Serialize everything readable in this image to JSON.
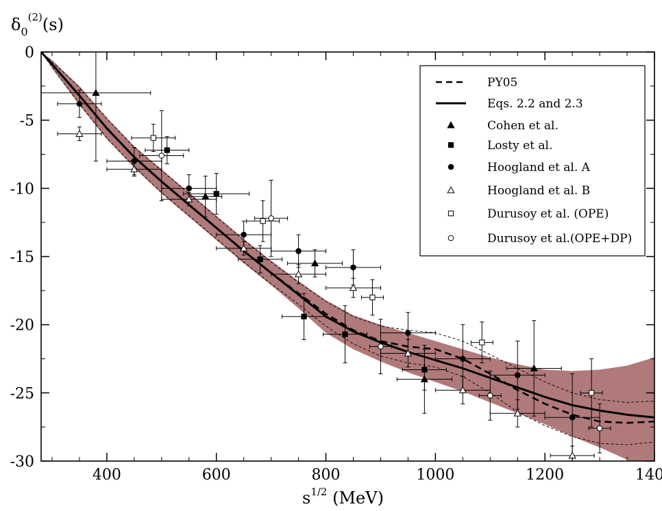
{
  "chart_data": {
    "type": "scatter",
    "ylabel": "δ",
    "ylabel_sub": "0",
    "ylabel_sup": "(2)",
    "ylabel_suffix": "(s)",
    "xlabel": "s",
    "xlabel_sup": "1/2",
    "xlabel_suffix": " (MeV)",
    "xlim": [
      280,
      1400
    ],
    "ylim": [
      -30,
      0
    ],
    "x_ticks": [
      400,
      600,
      800,
      1000,
      1200,
      1400
    ],
    "y_ticks": [
      0,
      -5,
      -10,
      -15,
      -20,
      -25,
      -30
    ],
    "legend_position": "top-right",
    "band_color": "#b07a7a",
    "curves": [
      {
        "name": "PY05",
        "style": "dashed",
        "x": [
          280,
          300,
          350,
          400,
          450,
          500,
          550,
          600,
          650,
          700,
          750,
          800,
          850,
          900,
          950,
          1000,
          1050,
          1100,
          1150,
          1200,
          1250,
          1300,
          1350,
          1400
        ],
        "y": [
          0,
          -0.9,
          -3.2,
          -5.6,
          -7.7,
          -9.5,
          -11.2,
          -12.9,
          -14.6,
          -16.2,
          -17.7,
          -19.2,
          -20.4,
          -21.2,
          -21.6,
          -21.8,
          -22.5,
          -23.6,
          -24.8,
          -25.8,
          -26.6,
          -27.1,
          -27.2,
          -27.1
        ]
      },
      {
        "name": "Eqs. 2.2 and 2.3",
        "style": "solid",
        "x": [
          280,
          300,
          350,
          400,
          450,
          500,
          550,
          600,
          650,
          700,
          750,
          800,
          850,
          900,
          950,
          1000,
          1050,
          1100,
          1150,
          1200,
          1250,
          1300,
          1350,
          1400
        ],
        "y": [
          0,
          -0.9,
          -3.2,
          -5.6,
          -7.7,
          -9.5,
          -11.2,
          -12.9,
          -14.6,
          -16.2,
          -17.8,
          -19.4,
          -20.5,
          -21.3,
          -22.0,
          -22.6,
          -23.2,
          -23.9,
          -24.6,
          -25.3,
          -25.9,
          -26.3,
          -26.6,
          -26.8
        ]
      }
    ],
    "py05_error_bounds": {
      "x": [
        280,
        300,
        350,
        400,
        450,
        500,
        550,
        600,
        650,
        700,
        750,
        800,
        850,
        900,
        950,
        1000,
        1050,
        1100,
        1150,
        1200,
        1250,
        1300,
        1350,
        1400
      ],
      "upper": [
        0,
        -0.7,
        -2.6,
        -4.9,
        -7.0,
        -8.7,
        -10.4,
        -12.1,
        -13.8,
        -15.4,
        -16.9,
        -18.3,
        -19.4,
        -20.1,
        -20.4,
        -20.6,
        -21.2,
        -22.2,
        -23.2,
        -24.2,
        -25.0,
        -25.5,
        -25.7,
        -25.6
      ],
      "lower": [
        0,
        -1.1,
        -3.8,
        -6.3,
        -8.4,
        -10.3,
        -12.0,
        -13.7,
        -15.4,
        -17.0,
        -18.5,
        -20.1,
        -21.4,
        -22.3,
        -22.8,
        -23.1,
        -23.8,
        -25.0,
        -26.4,
        -27.4,
        -28.2,
        -28.7,
        -28.8,
        -28.6
      ]
    },
    "band": {
      "x": [
        280,
        300,
        350,
        400,
        450,
        500,
        550,
        600,
        650,
        700,
        750,
        800,
        850,
        900,
        950,
        1000,
        1050,
        1100,
        1150,
        1200,
        1250,
        1300,
        1350,
        1400
      ],
      "upper": [
        0,
        -0.6,
        -2.5,
        -4.8,
        -6.9,
        -8.6,
        -10.3,
        -12.0,
        -13.7,
        -15.3,
        -16.8,
        -18.2,
        -19.3,
        -20.0,
        -20.6,
        -21.2,
        -21.8,
        -22.4,
        -22.9,
        -23.3,
        -23.4,
        -23.3,
        -23.0,
        -22.4
      ],
      "lower": [
        0,
        -1.2,
        -3.9,
        -6.4,
        -8.5,
        -10.4,
        -12.1,
        -13.8,
        -15.5,
        -17.1,
        -18.8,
        -20.6,
        -21.8,
        -22.7,
        -23.5,
        -24.2,
        -24.9,
        -25.7,
        -26.5,
        -27.3,
        -28.2,
        -29.0,
        -29.9,
        -31.0
      ]
    },
    "series": [
      {
        "name": "Cohen et al.",
        "marker": "triangle-filled",
        "points": [
          {
            "x": 380,
            "y": -3.0,
            "xerr": 100,
            "yerr": 5.0
          },
          {
            "x": 580,
            "y": -10.6,
            "xerr": 30,
            "yerr": 1.5
          },
          {
            "x": 780,
            "y": -15.5,
            "xerr": 50,
            "yerr": 1.0
          },
          {
            "x": 980,
            "y": -24.0,
            "xerr": 50,
            "yerr": 2.5
          },
          {
            "x": 1180,
            "y": -23.2,
            "xerr": 50,
            "yerr": 3.5
          }
        ]
      },
      {
        "name": "Losty et al.",
        "marker": "square-filled",
        "points": [
          {
            "x": 510,
            "y": -7.2,
            "xerr": 40,
            "yerr": 1.0
          },
          {
            "x": 600,
            "y": -10.4,
            "xerr": 60,
            "yerr": 1.5
          },
          {
            "x": 680,
            "y": -15.2,
            "xerr": 40,
            "yerr": 1.0
          },
          {
            "x": 760,
            "y": -19.4,
            "xerr": 40,
            "yerr": 1.7
          },
          {
            "x": 835,
            "y": -20.7,
            "xerr": 40,
            "yerr": 2.1
          },
          {
            "x": 980,
            "y": -23.3,
            "xerr": 40,
            "yerr": 1.5
          }
        ]
      },
      {
        "name": "Hoogland et al. A",
        "marker": "circle-filled",
        "points": [
          {
            "x": 350,
            "y": -3.8,
            "xerr": 40,
            "yerr": 1.0
          },
          {
            "x": 450,
            "y": -8.0,
            "xerr": 50,
            "yerr": 1.0
          },
          {
            "x": 550,
            "y": -10.0,
            "xerr": 50,
            "yerr": 1.0
          },
          {
            "x": 650,
            "y": -13.4,
            "xerr": 50,
            "yerr": 1.0
          },
          {
            "x": 750,
            "y": -14.6,
            "xerr": 50,
            "yerr": 1.2
          },
          {
            "x": 850,
            "y": -15.8,
            "xerr": 50,
            "yerr": 1.3
          },
          {
            "x": 950,
            "y": -20.6,
            "xerr": 50,
            "yerr": 1.5
          },
          {
            "x": 1050,
            "y": -22.5,
            "xerr": 50,
            "yerr": 2.5
          },
          {
            "x": 1150,
            "y": -23.7,
            "xerr": 50,
            "yerr": 2.5
          },
          {
            "x": 1250,
            "y": -26.8,
            "xerr": 50,
            "yerr": 3.2
          }
        ]
      },
      {
        "name": "Hoogland et al. B",
        "marker": "triangle-open",
        "points": [
          {
            "x": 350,
            "y": -6.0,
            "xerr": 40,
            "yerr": 0.5
          },
          {
            "x": 450,
            "y": -8.6,
            "xerr": 50,
            "yerr": 0.5
          },
          {
            "x": 550,
            "y": -10.8,
            "xerr": 50,
            "yerr": 0.5
          },
          {
            "x": 650,
            "y": -14.4,
            "xerr": 50,
            "yerr": 0.5
          },
          {
            "x": 750,
            "y": -16.3,
            "xerr": 50,
            "yerr": 0.7
          },
          {
            "x": 850,
            "y": -17.3,
            "xerr": 50,
            "yerr": 0.7
          },
          {
            "x": 950,
            "y": -22.1,
            "xerr": 50,
            "yerr": 1.0
          },
          {
            "x": 1050,
            "y": -24.8,
            "xerr": 50,
            "yerr": 1.0
          },
          {
            "x": 1150,
            "y": -26.5,
            "xerr": 50,
            "yerr": 1.0
          },
          {
            "x": 1250,
            "y": -29.6,
            "xerr": 40,
            "yerr": 0.7
          }
        ]
      },
      {
        "name": "Durusoy et al. (OPE)",
        "marker": "square-open",
        "points": [
          {
            "x": 485,
            "y": -6.3,
            "xerr": 40,
            "yerr": 1.0
          },
          {
            "x": 685,
            "y": -12.4,
            "xerr": 30,
            "yerr": 1.5
          },
          {
            "x": 885,
            "y": -18.0,
            "xerr": 20,
            "yerr": 1.3
          },
          {
            "x": 1085,
            "y": -21.3,
            "xerr": 20,
            "yerr": 1.5
          },
          {
            "x": 1285,
            "y": -25.0,
            "xerr": 20,
            "yerr": 2.5
          }
        ]
      },
      {
        "name": "Durusoy et al.(OPE+DP)",
        "marker": "circle-open",
        "points": [
          {
            "x": 500,
            "y": -7.6,
            "xerr": 40,
            "yerr": 3.3
          },
          {
            "x": 700,
            "y": -12.2,
            "xerr": 30,
            "yerr": 2.8
          },
          {
            "x": 900,
            "y": -21.6,
            "xerr": 20,
            "yerr": 2.0
          },
          {
            "x": 1100,
            "y": -25.2,
            "xerr": 20,
            "yerr": 1.8
          },
          {
            "x": 1300,
            "y": -27.6,
            "xerr": 20,
            "yerr": 1.8
          }
        ]
      }
    ]
  }
}
